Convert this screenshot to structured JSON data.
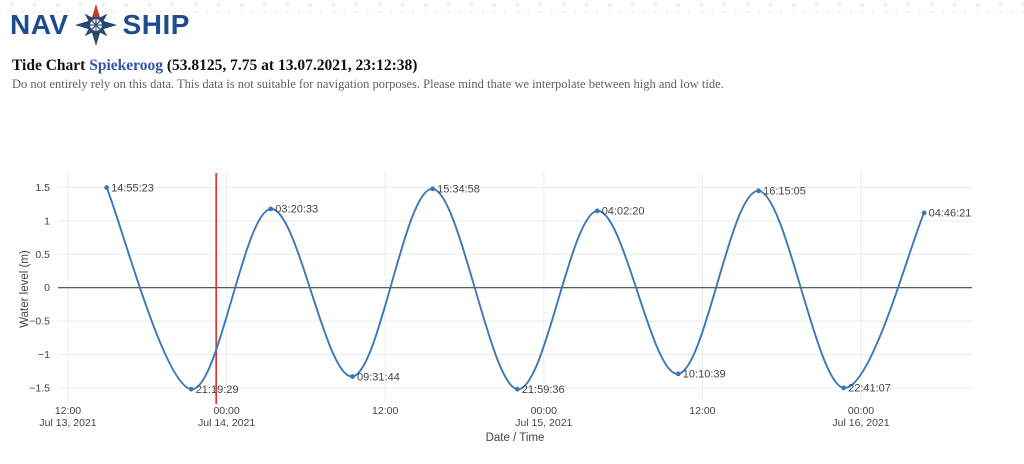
{
  "header": {
    "logo": {
      "part1": "NAV",
      "part2": "SHIP",
      "icon": "compass-rose-icon",
      "text_color": "#1e4c8f",
      "compass_navy": "#27486f",
      "compass_red": "#c23b31"
    },
    "title": {
      "prefix": "Tide Chart",
      "location_link": "Spiekeroog",
      "details": "(53.8125, 7.75 at 13.07.2021, 23:12:38)",
      "link_color": "#3355a8"
    },
    "disclaimer": "Do not entirely rely on this data. This data is not suitable for navigation porposes. Please mind thate we interpolate between high and low tide."
  },
  "chart_data": {
    "type": "line",
    "title": "",
    "xlabel": "Date / Time",
    "ylabel": "Water level (m)",
    "ylim": [
      -1.7,
      1.73
    ],
    "yticks": [
      1.5,
      1,
      0.5,
      0,
      -0.5,
      -1,
      -1.5
    ],
    "grid": true,
    "line_color": "#3b78b5",
    "zero_line_color": "#444444",
    "grid_color": "#e9ebee",
    "points": [
      {
        "label": "14:55:23",
        "day_offset": 0,
        "time": "14:55:23",
        "value": 1.5,
        "kind": "high"
      },
      {
        "label": "21:19:29",
        "day_offset": 0,
        "time": "21:19:29",
        "value": -1.52,
        "kind": "low"
      },
      {
        "label": "03:20:33",
        "day_offset": 1,
        "time": "03:20:33",
        "value": 1.18,
        "kind": "high"
      },
      {
        "label": "09:31:44",
        "day_offset": 1,
        "time": "09:31:44",
        "value": -1.33,
        "kind": "low"
      },
      {
        "label": "15:34:58",
        "day_offset": 1,
        "time": "15:34:58",
        "value": 1.48,
        "kind": "high"
      },
      {
        "label": "21:59:36",
        "day_offset": 1,
        "time": "21:59:36",
        "value": -1.52,
        "kind": "low"
      },
      {
        "label": "04:02:20",
        "day_offset": 2,
        "time": "04:02:20",
        "value": 1.15,
        "kind": "high"
      },
      {
        "label": "10:10:39",
        "day_offset": 2,
        "time": "10:10:39",
        "value": -1.29,
        "kind": "low"
      },
      {
        "label": "16:15:05",
        "day_offset": 2,
        "time": "16:15:05",
        "value": 1.45,
        "kind": "high"
      },
      {
        "label": "22:41:07",
        "day_offset": 2,
        "time": "22:41:07",
        "value": -1.5,
        "kind": "low"
      },
      {
        "label": "04:46:21",
        "day_offset": 3,
        "time": "04:46:21",
        "value": 1.12,
        "kind": "high"
      }
    ],
    "x_ticks": [
      {
        "label": "12:00",
        "date_label": "Jul 13, 2021",
        "day_offset": 0,
        "hour": 12
      },
      {
        "label": "00:00",
        "date_label": "Jul 14, 2021",
        "day_offset": 1,
        "hour": 0
      },
      {
        "label": "12:00",
        "date_label": "",
        "day_offset": 1,
        "hour": 12
      },
      {
        "label": "00:00",
        "date_label": "Jul 15, 2021",
        "day_offset": 2,
        "hour": 0
      },
      {
        "label": "12:00",
        "date_label": "",
        "day_offset": 2,
        "hour": 12
      },
      {
        "label": "00:00",
        "date_label": "Jul 16, 2021",
        "day_offset": 3,
        "hour": 0
      }
    ],
    "now_marker": {
      "day_offset": 0,
      "time": "23:12:38",
      "color": "#e0352b"
    }
  }
}
